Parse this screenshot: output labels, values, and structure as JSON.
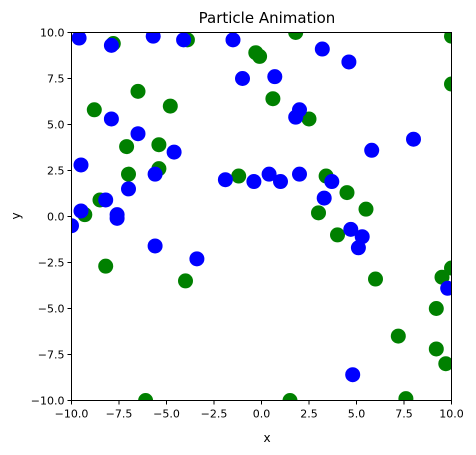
{
  "chart_data": {
    "type": "scatter",
    "title": "Particle Animation",
    "xlabel": "x",
    "ylabel": "y",
    "xlim": [
      -10,
      10
    ],
    "ylim": [
      -10,
      10
    ],
    "grid": false,
    "xticks": [
      "−10.0",
      "−7.5",
      "−5.0",
      "−2.5",
      "0.0",
      "2.5",
      "5.0",
      "7.5",
      "10.0"
    ],
    "xtick_values": [
      -10,
      -7.5,
      -5,
      -2.5,
      0,
      2.5,
      5,
      7.5,
      10
    ],
    "yticks": [
      "−10.0",
      "−7.5",
      "−5.0",
      "−2.5",
      "0.0",
      "2.5",
      "5.0",
      "7.5",
      "10.0"
    ],
    "ytick_values": [
      -10,
      -7.5,
      -5,
      -2.5,
      0,
      2.5,
      5,
      7.5,
      10
    ],
    "series": [
      {
        "color": "#008000",
        "points": [
          [
            -9.3,
            0.1
          ],
          [
            -8.8,
            5.8
          ],
          [
            -8.5,
            0.9
          ],
          [
            -8.2,
            -2.7
          ],
          [
            -7.8,
            9.4
          ],
          [
            -7.1,
            3.8
          ],
          [
            -7.0,
            2.3
          ],
          [
            -6.5,
            6.8
          ],
          [
            -6.1,
            -10.0
          ],
          [
            -5.4,
            3.9
          ],
          [
            -5.4,
            2.6
          ],
          [
            -4.8,
            6.0
          ],
          [
            -4.0,
            -3.5
          ],
          [
            -3.9,
            9.6
          ],
          [
            -1.2,
            2.2
          ],
          [
            -0.3,
            8.9
          ],
          [
            -0.1,
            8.7
          ],
          [
            0.6,
            6.4
          ],
          [
            1.5,
            -10.0
          ],
          [
            1.8,
            10.0
          ],
          [
            2.5,
            5.3
          ],
          [
            3.0,
            0.2
          ],
          [
            3.4,
            2.2
          ],
          [
            4.0,
            -1.0
          ],
          [
            4.5,
            1.3
          ],
          [
            5.5,
            0.4
          ],
          [
            6.0,
            -3.4
          ],
          [
            7.2,
            -6.5
          ],
          [
            7.6,
            -9.9
          ],
          [
            9.2,
            -5.0
          ],
          [
            9.2,
            -7.2
          ],
          [
            9.5,
            -3.3
          ],
          [
            9.7,
            -8.0
          ],
          [
            10.0,
            -2.8
          ],
          [
            10.0,
            7.2
          ],
          [
            10.0,
            9.8
          ]
        ]
      },
      {
        "color": "#0000ff",
        "points": [
          [
            -10.0,
            -0.5
          ],
          [
            -9.6,
            9.7
          ],
          [
            -9.5,
            2.8
          ],
          [
            -9.5,
            0.3
          ],
          [
            -8.2,
            0.9
          ],
          [
            -7.9,
            9.3
          ],
          [
            -7.9,
            5.3
          ],
          [
            -7.6,
            0.1
          ],
          [
            -7.6,
            -0.1
          ],
          [
            -7.0,
            1.5
          ],
          [
            -6.5,
            4.5
          ],
          [
            -5.7,
            9.8
          ],
          [
            -5.6,
            2.3
          ],
          [
            -5.6,
            -1.6
          ],
          [
            -4.6,
            3.5
          ],
          [
            -4.1,
            9.6
          ],
          [
            -3.4,
            -2.3
          ],
          [
            -1.9,
            2.0
          ],
          [
            -1.5,
            9.6
          ],
          [
            -1.0,
            7.5
          ],
          [
            -0.4,
            1.9
          ],
          [
            0.4,
            2.3
          ],
          [
            0.7,
            7.6
          ],
          [
            1.0,
            1.9
          ],
          [
            1.8,
            5.4
          ],
          [
            2.0,
            5.8
          ],
          [
            2.0,
            2.3
          ],
          [
            3.2,
            9.1
          ],
          [
            3.3,
            1.0
          ],
          [
            3.7,
            1.9
          ],
          [
            4.6,
            8.4
          ],
          [
            4.7,
            -0.7
          ],
          [
            4.8,
            -8.6
          ],
          [
            5.1,
            -1.7
          ],
          [
            5.3,
            -1.1
          ],
          [
            5.8,
            3.6
          ],
          [
            8.0,
            4.2
          ],
          [
            9.8,
            -3.9
          ]
        ]
      }
    ]
  }
}
